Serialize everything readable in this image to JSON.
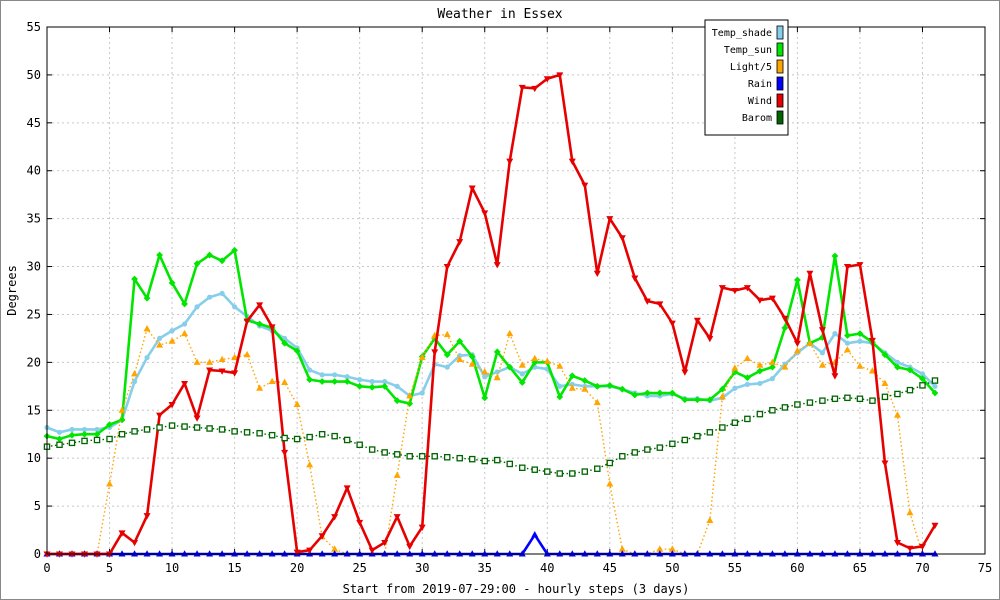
{
  "chart_data": {
    "type": "line",
    "title": "Weather in Essex",
    "xlabel": "Start from 2019-07-29:00 - hourly steps (3 days)",
    "ylabel": "Degrees",
    "xlim": [
      0,
      75
    ],
    "ylim": [
      0,
      55
    ],
    "xticks": [
      0,
      5,
      10,
      15,
      20,
      25,
      30,
      35,
      40,
      45,
      50,
      55,
      60,
      65,
      70,
      75
    ],
    "yticks": [
      0,
      5,
      10,
      15,
      20,
      25,
      30,
      35,
      40,
      45,
      50,
      55
    ],
    "grid": true,
    "legend_position": "top-right",
    "x": [
      0,
      1,
      2,
      3,
      4,
      5,
      6,
      7,
      8,
      9,
      10,
      11,
      12,
      13,
      14,
      15,
      16,
      17,
      18,
      19,
      20,
      21,
      22,
      23,
      24,
      25,
      26,
      27,
      28,
      29,
      30,
      31,
      32,
      33,
      34,
      35,
      36,
      37,
      38,
      39,
      40,
      41,
      42,
      43,
      44,
      45,
      46,
      47,
      48,
      49,
      50,
      51,
      52,
      53,
      54,
      55,
      56,
      57,
      58,
      59,
      60,
      61,
      62,
      63,
      64,
      65,
      66,
      67,
      68,
      69,
      70,
      71
    ],
    "series": [
      {
        "name": "Temp_shade",
        "color": "#87ceeb",
        "marker": "circle",
        "style": "solid",
        "values": [
          13.2,
          12.7,
          13.0,
          13.0,
          13.0,
          13.2,
          14.0,
          18.0,
          20.5,
          22.5,
          23.3,
          24.0,
          25.8,
          26.8,
          27.2,
          25.8,
          24.8,
          23.8,
          23.3,
          22.5,
          21.5,
          19.2,
          18.7,
          18.7,
          18.5,
          18.2,
          18.0,
          18.0,
          17.5,
          16.5,
          16.8,
          19.8,
          19.5,
          20.7,
          20.8,
          18.5,
          19.0,
          19.5,
          18.8,
          19.5,
          19.3,
          17.5,
          17.7,
          17.5,
          17.5,
          17.5,
          17.2,
          16.8,
          16.5,
          16.5,
          16.7,
          16.2,
          16.2,
          16.0,
          16.3,
          17.3,
          17.7,
          17.8,
          18.3,
          19.8,
          21.0,
          22.0,
          21.0,
          23.0,
          22.0,
          22.2,
          22.0,
          21.0,
          20.0,
          19.5,
          18.8,
          17.5
        ]
      },
      {
        "name": "Temp_sun",
        "color": "#00e600",
        "marker": "diamond",
        "style": "solid",
        "values": [
          12.3,
          12.0,
          12.4,
          12.5,
          12.5,
          13.5,
          14.0,
          28.7,
          26.7,
          31.2,
          28.3,
          26.1,
          30.3,
          31.2,
          30.6,
          31.7,
          24.4,
          24.0,
          23.6,
          22.0,
          21.2,
          18.2,
          18.0,
          18.0,
          18.0,
          17.5,
          17.4,
          17.5,
          16.0,
          15.7,
          20.6,
          22.5,
          20.8,
          22.2,
          20.6,
          16.3,
          21.1,
          19.5,
          17.9,
          20.0,
          20.0,
          16.4,
          18.6,
          18.1,
          17.5,
          17.6,
          17.2,
          16.6,
          16.8,
          16.8,
          16.8,
          16.1,
          16.1,
          16.1,
          17.2,
          19.0,
          18.4,
          19.1,
          19.5,
          23.6,
          28.6,
          22.0,
          22.6,
          31.1,
          22.8,
          23.0,
          22.1,
          20.8,
          19.5,
          19.2,
          18.3,
          16.8
        ]
      },
      {
        "name": "Light/5",
        "color": "#ffa500",
        "marker": "triangle",
        "style": "dotted",
        "values": [
          0,
          0,
          0,
          0,
          0,
          7.3,
          15.0,
          18.8,
          23.5,
          21.8,
          22.2,
          23.0,
          20.0,
          20.0,
          20.3,
          20.5,
          20.8,
          17.3,
          18.0,
          17.9,
          15.6,
          9.3,
          1.8,
          0.5,
          0,
          0,
          0,
          0,
          8.2,
          16.5,
          20.5,
          22.8,
          22.9,
          20.3,
          19.8,
          19.0,
          18.4,
          23.0,
          19.7,
          20.4,
          20.1,
          19.6,
          17.3,
          17.2,
          15.8,
          7.3,
          0.5,
          0,
          0,
          0.5,
          0.5,
          0,
          0,
          3.5,
          16.4,
          19.4,
          20.4,
          19.7,
          20.0,
          19.5,
          21.2,
          22.0,
          19.7,
          20.0,
          21.3,
          19.6,
          19.1,
          17.8,
          14.5,
          4.3,
          0,
          0
        ]
      },
      {
        "name": "Rain",
        "color": "#0000ff",
        "marker": "triangle",
        "style": "solid",
        "values": [
          0,
          0,
          0,
          0,
          0,
          0,
          0,
          0,
          0,
          0,
          0,
          0,
          0,
          0,
          0,
          0,
          0,
          0,
          0,
          0,
          0,
          0,
          0,
          0,
          0,
          0,
          0,
          0,
          0,
          0,
          0,
          0,
          0,
          0,
          0,
          0,
          0,
          0,
          0,
          2.0,
          0,
          0,
          0,
          0,
          0,
          0,
          0,
          0,
          0,
          0,
          0,
          0,
          0,
          0,
          0,
          0,
          0,
          0,
          0,
          0,
          0,
          0,
          0,
          0,
          0,
          0,
          0,
          0,
          0,
          0,
          0,
          0
        ]
      },
      {
        "name": "Wind",
        "color": "#e60000",
        "marker": "triangle-down",
        "style": "solid",
        "values": [
          0,
          0,
          0,
          0,
          0,
          0,
          2.2,
          1.2,
          4.0,
          14.5,
          15.6,
          17.8,
          14.2,
          19.2,
          19.1,
          18.9,
          24.3,
          26.0,
          23.7,
          10.6,
          0.2,
          0.4,
          1.9,
          3.9,
          6.9,
          3.3,
          0.4,
          1.2,
          3.9,
          0.8,
          2.8,
          21.1,
          30.0,
          32.6,
          38.2,
          35.6,
          30.2,
          41.0,
          48.7,
          48.6,
          49.6,
          50.0,
          41.0,
          38.5,
          29.3,
          35.0,
          33.0,
          28.8,
          26.4,
          26.1,
          24.1,
          19.0,
          24.4,
          22.5,
          27.8,
          27.5,
          27.8,
          26.5,
          26.7,
          24.6,
          22.0,
          29.3,
          23.4,
          18.6,
          30.0,
          30.2,
          22.3,
          9.5,
          1.2,
          0.6,
          0.8,
          3.0
        ]
      },
      {
        "name": "Barom",
        "color": "#006400",
        "marker": "square",
        "style": "dotted",
        "values": [
          11.2,
          11.4,
          11.6,
          11.8,
          11.9,
          12.0,
          12.5,
          12.8,
          13.0,
          13.2,
          13.4,
          13.3,
          13.2,
          13.1,
          13.0,
          12.8,
          12.7,
          12.6,
          12.4,
          12.1,
          12.0,
          12.2,
          12.5,
          12.3,
          11.9,
          11.4,
          10.9,
          10.6,
          10.4,
          10.2,
          10.2,
          10.2,
          10.1,
          10.0,
          9.9,
          9.7,
          9.8,
          9.4,
          9.0,
          8.8,
          8.6,
          8.4,
          8.4,
          8.6,
          8.9,
          9.5,
          10.2,
          10.6,
          10.9,
          11.1,
          11.5,
          11.9,
          12.3,
          12.7,
          13.2,
          13.7,
          14.1,
          14.6,
          15.0,
          15.3,
          15.6,
          15.8,
          16.0,
          16.2,
          16.3,
          16.2,
          16.0,
          16.4,
          16.7,
          17.1,
          17.6,
          18.1
        ]
      }
    ]
  }
}
